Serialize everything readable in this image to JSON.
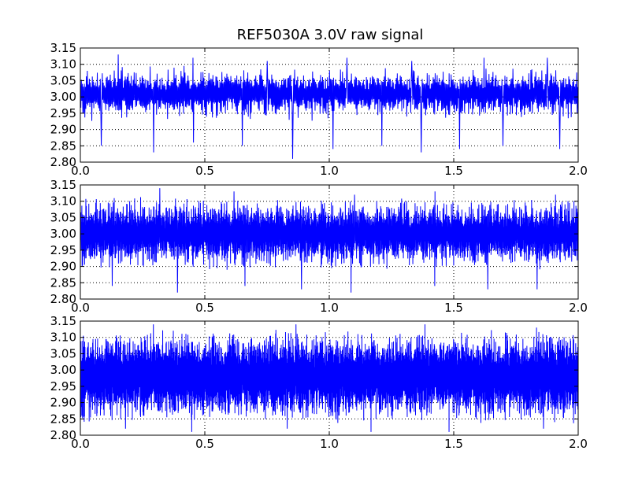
{
  "title": "REF5030A 3.0V raw signal",
  "colors": {
    "line": "#0000ff",
    "grid": "#000000",
    "axes": "#000000",
    "background": "#ffffff"
  },
  "chart_data": [
    {
      "type": "line",
      "title": "REF5030A 3.0V raw signal",
      "xlabel": "",
      "ylabel": "",
      "xlim": [
        0.0,
        2.0
      ],
      "ylim": [
        2.8,
        3.15
      ],
      "x_ticks": [
        "0.0",
        "0.5",
        "1.0",
        "1.5",
        "2.0"
      ],
      "y_ticks": [
        "2.80",
        "2.85",
        "2.90",
        "2.95",
        "3.00",
        "3.05",
        "3.10",
        "3.15"
      ],
      "grid": true,
      "grid_style": "dotted",
      "legend": "none",
      "series": [
        {
          "points": 1000,
          "mean": 3.01,
          "typical_range": [
            2.93,
            3.1
          ],
          "spike_min_values": [
            2.85,
            2.83,
            2.86,
            2.85,
            2.81,
            2.84,
            2.85,
            2.83,
            2.84,
            2.85,
            2.84
          ],
          "spike_max_values": [
            3.13,
            3.12,
            3.11,
            3.12,
            3.11,
            3.12,
            3.12
          ]
        }
      ]
    },
    {
      "type": "line",
      "xlabel": "",
      "ylabel": "",
      "xlim": [
        0.0,
        2.0
      ],
      "ylim": [
        2.8,
        3.15
      ],
      "x_ticks": [
        "0.0",
        "0.5",
        "1.0",
        "1.5",
        "2.0"
      ],
      "y_ticks": [
        "2.80",
        "2.85",
        "2.90",
        "2.95",
        "3.00",
        "3.05",
        "3.10",
        "3.15"
      ],
      "grid": true,
      "grid_style": "dotted",
      "legend": "none",
      "series": [
        {
          "points": 2000,
          "mean": 3.0,
          "typical_range": [
            2.88,
            3.11
          ],
          "spike_min_values": [
            2.84,
            2.82,
            2.84,
            2.83,
            2.82,
            2.84,
            2.83,
            2.83
          ],
          "spike_max_values": [
            3.14,
            3.13,
            3.12,
            3.13,
            3.12
          ]
        }
      ]
    },
    {
      "type": "line",
      "xlabel": "",
      "ylabel": "",
      "xlim": [
        0.0,
        2.0
      ],
      "ylim": [
        2.8,
        3.15
      ],
      "x_ticks": [
        "0.0",
        "0.5",
        "1.0",
        "1.5",
        "2.0"
      ],
      "y_ticks": [
        "2.80",
        "2.85",
        "2.90",
        "2.95",
        "3.00",
        "3.05",
        "3.10",
        "3.15"
      ],
      "grid": true,
      "grid_style": "dotted",
      "legend": "none",
      "series": [
        {
          "points": 3000,
          "mean": 2.98,
          "typical_range": [
            2.84,
            3.13
          ],
          "spike_min_values": [
            2.82,
            2.81,
            2.82,
            2.81,
            2.81,
            2.82
          ],
          "spike_max_values": [
            3.14,
            3.14,
            3.14,
            3.13
          ]
        }
      ]
    }
  ]
}
